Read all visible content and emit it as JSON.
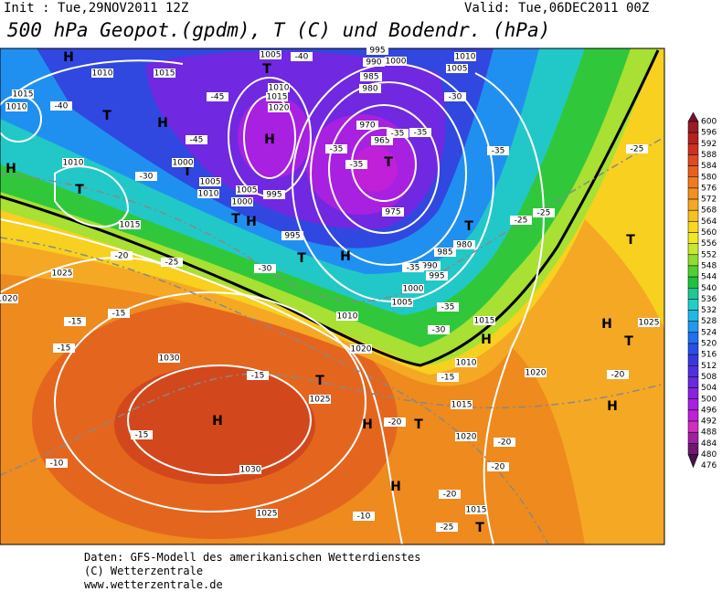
{
  "header": {
    "init": "Init : Tue,29NOV2011 12Z",
    "valid": "Valid: Tue,06DEC2011 00Z",
    "title": "500 hPa Geopot.(gpdm), T (C) und Bodendr. (hPa)"
  },
  "colorbar": {
    "labels": [
      "600",
      "596",
      "592",
      "588",
      "584",
      "580",
      "576",
      "572",
      "568",
      "564",
      "560",
      "556",
      "552",
      "548",
      "544",
      "540",
      "536",
      "532",
      "528",
      "524",
      "520",
      "516",
      "512",
      "508",
      "504",
      "500",
      "496",
      "492",
      "488",
      "484",
      "480",
      "476"
    ],
    "colors": [
      "#7a1030",
      "#9a1a28",
      "#b82020",
      "#d03020",
      "#e04a20",
      "#e86020",
      "#f07a20",
      "#f39020",
      "#f5a824",
      "#f8c020",
      "#fad820",
      "#f0e820",
      "#c8e830",
      "#90dc30",
      "#50d030",
      "#20c040",
      "#20c890",
      "#20d0c8",
      "#20b8e8",
      "#2098f0",
      "#2070f0",
      "#2850e8",
      "#3838e0",
      "#5030e0",
      "#6a28e0",
      "#8a20e0",
      "#a820e0",
      "#c020d8",
      "#d030c0",
      "#a020a0",
      "#701870",
      "#481050"
    ]
  },
  "pressure_centers": [
    "H",
    "H",
    "H",
    "H",
    "H",
    "H",
    "H",
    "H",
    "H",
    "H",
    "H",
    "H",
    "T",
    "T",
    "T",
    "T",
    "T",
    "T",
    "T",
    "T",
    "T",
    "T",
    "T",
    "T",
    "T"
  ],
  "isobar_labels": [
    "1010",
    "1015",
    "1015",
    "1010",
    "1010",
    "1015",
    "1025",
    "1020",
    "1030",
    "1025",
    "1030",
    "1025",
    "1020",
    "1010",
    "1005",
    "1000",
    "995",
    "990",
    "985",
    "980",
    "975",
    "995",
    "1005",
    "1000",
    "995",
    "1010",
    "1005",
    "1000",
    "1020",
    "1015",
    "1010",
    "1005",
    "990",
    "985",
    "980",
    "970",
    "965",
    "995",
    "1000",
    "1005",
    "1010",
    "1015",
    "1010",
    "1015",
    "1020",
    "1020",
    "1025",
    "1015"
  ],
  "temperature_labels": [
    "-40",
    "-45",
    "-45",
    "-40",
    "-35",
    "-35",
    "-35",
    "-30",
    "-35",
    "-25",
    "-25",
    "-25",
    "-30",
    "-30",
    "-25",
    "-20",
    "-15",
    "-15",
    "-15",
    "-15",
    "-15",
    "-10",
    "-20",
    "-20",
    "-20",
    "-20",
    "-25",
    "-20",
    "-15",
    "-35",
    "-35",
    "-30",
    "-10",
    "-35"
  ],
  "footer": [
    "Daten: GFS-Modell des amerikanischen Wetterdienstes",
    "(C) Wetterzentrale",
    "www.wetterzentrale.de"
  ]
}
